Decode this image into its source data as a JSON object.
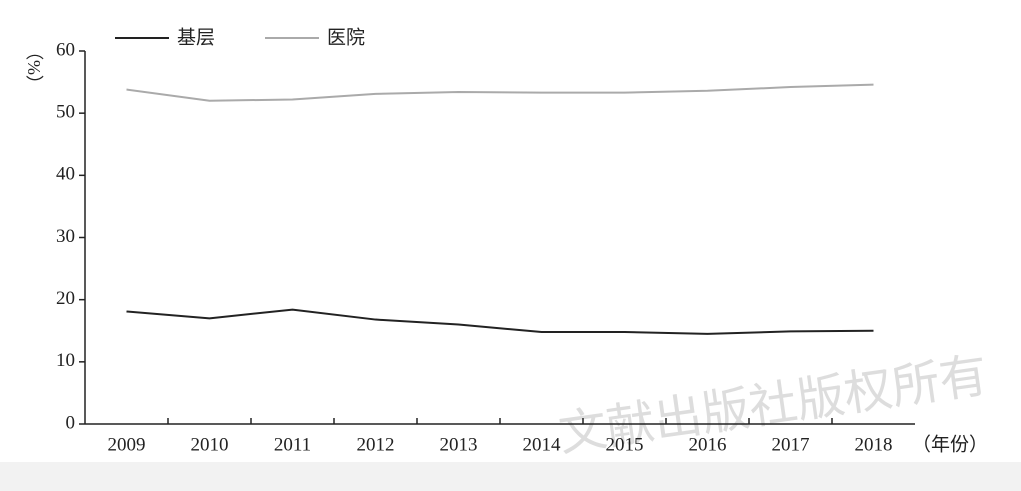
{
  "chart_data": {
    "type": "line",
    "categories": [
      "2009",
      "2010",
      "2011",
      "2012",
      "2013",
      "2014",
      "2015",
      "2016",
      "2017",
      "2018"
    ],
    "series": [
      {
        "name": "基层",
        "color": "#222222",
        "values": [
          18.1,
          17.0,
          18.4,
          16.8,
          16.0,
          14.8,
          14.8,
          14.5,
          14.9,
          15.0
        ]
      },
      {
        "name": "医院",
        "color": "#aaaaaa",
        "values": [
          53.8,
          52.0,
          52.2,
          53.1,
          53.4,
          53.3,
          53.3,
          53.6,
          54.2,
          54.6
        ]
      }
    ],
    "y_label": "（%）",
    "x_label": "（年份）",
    "ylim": [
      0,
      60
    ],
    "yticks": [
      0,
      10,
      20,
      30,
      40,
      50,
      60
    ],
    "watermark": "文献出版社版权所有"
  }
}
